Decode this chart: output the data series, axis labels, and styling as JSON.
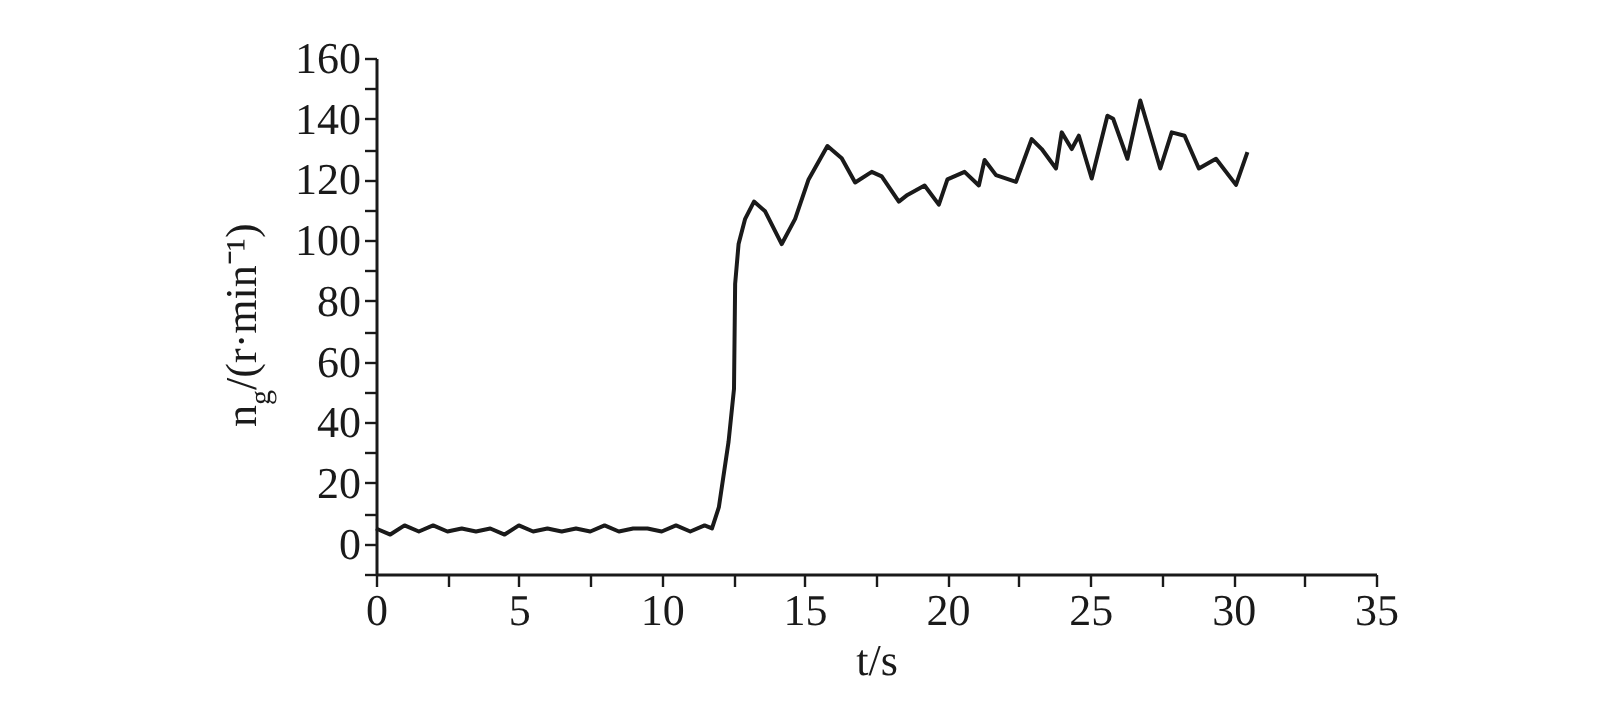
{
  "chart_data": {
    "type": "line",
    "xlabel": "t/s",
    "ylabel": "n$_{g}$/(r·min⁻¹)",
    "x": [
      0,
      0.5,
      1.0,
      1.5,
      2.0,
      2.5,
      3.0,
      3.5,
      4.0,
      4.5,
      5.0,
      5.5,
      6.0,
      6.5,
      7.0,
      7.5,
      8.0,
      8.5,
      9.0,
      9.5,
      10.0,
      10.5,
      11.0,
      11.5,
      11.76,
      12.0,
      12.34,
      12.53,
      12.57,
      12.69,
      12.92,
      13.23,
      13.62,
      14.2,
      14.67,
      15.14,
      15.8,
      16.3,
      16.77,
      17.35,
      17.7,
      18.3,
      18.6,
      19.2,
      19.7,
      20.0,
      20.6,
      21.1,
      21.3,
      21.7,
      22.4,
      22.95,
      23.3,
      23.8,
      24.0,
      24.35,
      24.6,
      25.05,
      25.6,
      25.8,
      26.3,
      26.75,
      27.45,
      27.85,
      28.3,
      28.8,
      29.4,
      30.1,
      30.5
    ],
    "series": [
      {
        "color": "#1a1a1a",
        "values": [
          5,
          3,
          6,
          4,
          6,
          4,
          5,
          4,
          5,
          3,
          6,
          4,
          5,
          4,
          5,
          4,
          6,
          4,
          5,
          5,
          4,
          6,
          4,
          6,
          5,
          12,
          33.6,
          51,
          85.6,
          98.7,
          107,
          112.7,
          109.5,
          98.7,
          107,
          120,
          131,
          127,
          119,
          122.5,
          121,
          112.7,
          114.9,
          118,
          111.7,
          120,
          122.5,
          118,
          126.4,
          121.4,
          119.2,
          133.3,
          130,
          123.6,
          135.5,
          130,
          134.4,
          120.3,
          141,
          140,
          126.8,
          146,
          123.6,
          135.5,
          134.4,
          123.6,
          126.8,
          118.2,
          129
        ]
      }
    ],
    "xlim": [
      0,
      35
    ],
    "xticks": [
      0,
      {
        "value": 2.5,
        "label": null
      },
      5,
      {
        "value": 7.5,
        "label": null
      },
      10,
      {
        "value": 12.5,
        "label": null
      },
      15,
      {
        "value": 17.5,
        "label": null
      },
      20,
      {
        "value": 22.5,
        "label": null
      },
      25,
      {
        "value": 27.5,
        "label": null
      },
      30,
      {
        "value": 32.5,
        "label": null
      },
      35
    ],
    "ylim": [
      -10,
      160
    ],
    "yticks": [
      {
        "value": -10,
        "label": null
      },
      0,
      {
        "value": 10,
        "label": null
      },
      20,
      {
        "value": 30,
        "label": null
      },
      40,
      {
        "value": 50,
        "label": null
      },
      60,
      {
        "value": 70,
        "label": null
      },
      80,
      {
        "value": 90,
        "label": null
      },
      100,
      {
        "value": 110,
        "label": null
      },
      120,
      {
        "value": 130,
        "label": null
      },
      140,
      {
        "value": 150,
        "label": null
      },
      160
    ],
    "grid": false,
    "legend": false,
    "marker": "none",
    "line_style": "solid"
  }
}
